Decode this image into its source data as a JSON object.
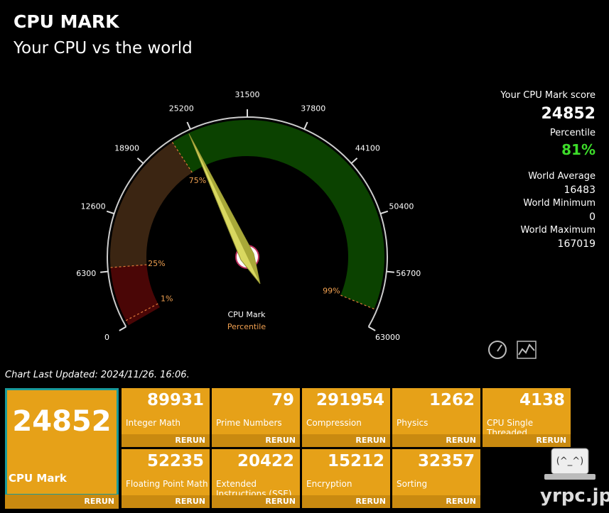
{
  "header": {
    "title": "CPU MARK",
    "subtitle": "Your CPU vs the world"
  },
  "gauge": {
    "ticks": [
      0,
      6300,
      12600,
      18900,
      25200,
      31500,
      37800,
      44100,
      50400,
      56700,
      63000
    ],
    "value": 24852,
    "label": "CPU Mark",
    "sublabel": "Percentile",
    "bands": [
      {
        "from": 0,
        "to": 6700,
        "color": "#4a0606"
      },
      {
        "from": 6700,
        "to": 22800,
        "color": "#3b2512"
      },
      {
        "from": 22800,
        "to": 61000,
        "color": "#0b4200"
      }
    ],
    "percentile_marks": [
      {
        "label": "1%",
        "value": 600
      },
      {
        "label": "25%",
        "value": 6700
      },
      {
        "label": "75%",
        "value": 22800
      },
      {
        "label": "99%",
        "value": 61000
      }
    ]
  },
  "summary": {
    "score_label": "Your CPU Mark score",
    "score": 24852,
    "percentile_label": "Percentile",
    "percentile": "81%",
    "stats": [
      {
        "label": "World Average",
        "value": 16483
      },
      {
        "label": "World Minimum",
        "value": 0
      },
      {
        "label": "World Maximum",
        "value": 167019
      }
    ]
  },
  "updated": "Chart Last Updated: 2024/11/26. 16:06.",
  "main_tile": {
    "value": 24852,
    "name": "CPU Mark",
    "action": "RERUN"
  },
  "tiles": [
    {
      "value": 89931,
      "name": "Integer Math",
      "action": "RERUN"
    },
    {
      "value": 79,
      "name": "Prime Numbers",
      "action": "RERUN"
    },
    {
      "value": 291954,
      "name": "Compression",
      "action": "RERUN"
    },
    {
      "value": 1262,
      "name": "Physics",
      "action": "RERUN"
    },
    {
      "value": 4138,
      "name": "CPU Single Threaded",
      "action": "RERUN"
    },
    {
      "value": 52235,
      "name": "Floating Point Math",
      "action": "RERUN"
    },
    {
      "value": 20422,
      "name": "Extended Instructions (SSE)",
      "action": "RERUN"
    },
    {
      "value": 15212,
      "name": "Encryption",
      "action": "RERUN"
    },
    {
      "value": 32357,
      "name": "Sorting",
      "action": "RERUN"
    }
  ],
  "watermark": "yrpc.jp"
}
